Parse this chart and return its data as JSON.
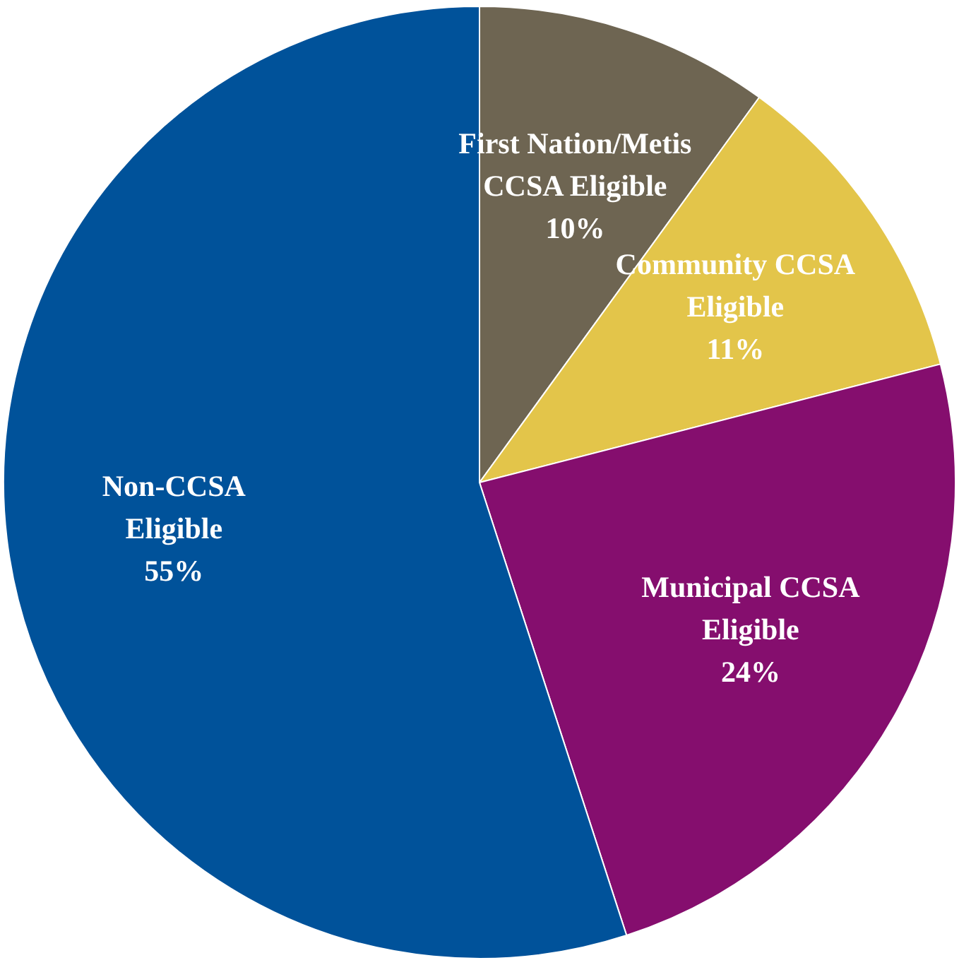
{
  "chart_data": {
    "type": "pie",
    "categories": [
      "First Nation/Metis CCSA Eligible",
      "Community CCSA Eligible",
      "Municipal CCSA Eligible",
      "Non-CCSA Eligible"
    ],
    "values": [
      10,
      11,
      24,
      55
    ],
    "colors": [
      "#6e6552",
      "#e3c54a",
      "#850e6e",
      "#00529a"
    ],
    "value_labels": [
      "10%",
      "11%",
      "24%",
      "55%"
    ],
    "legend": false
  }
}
